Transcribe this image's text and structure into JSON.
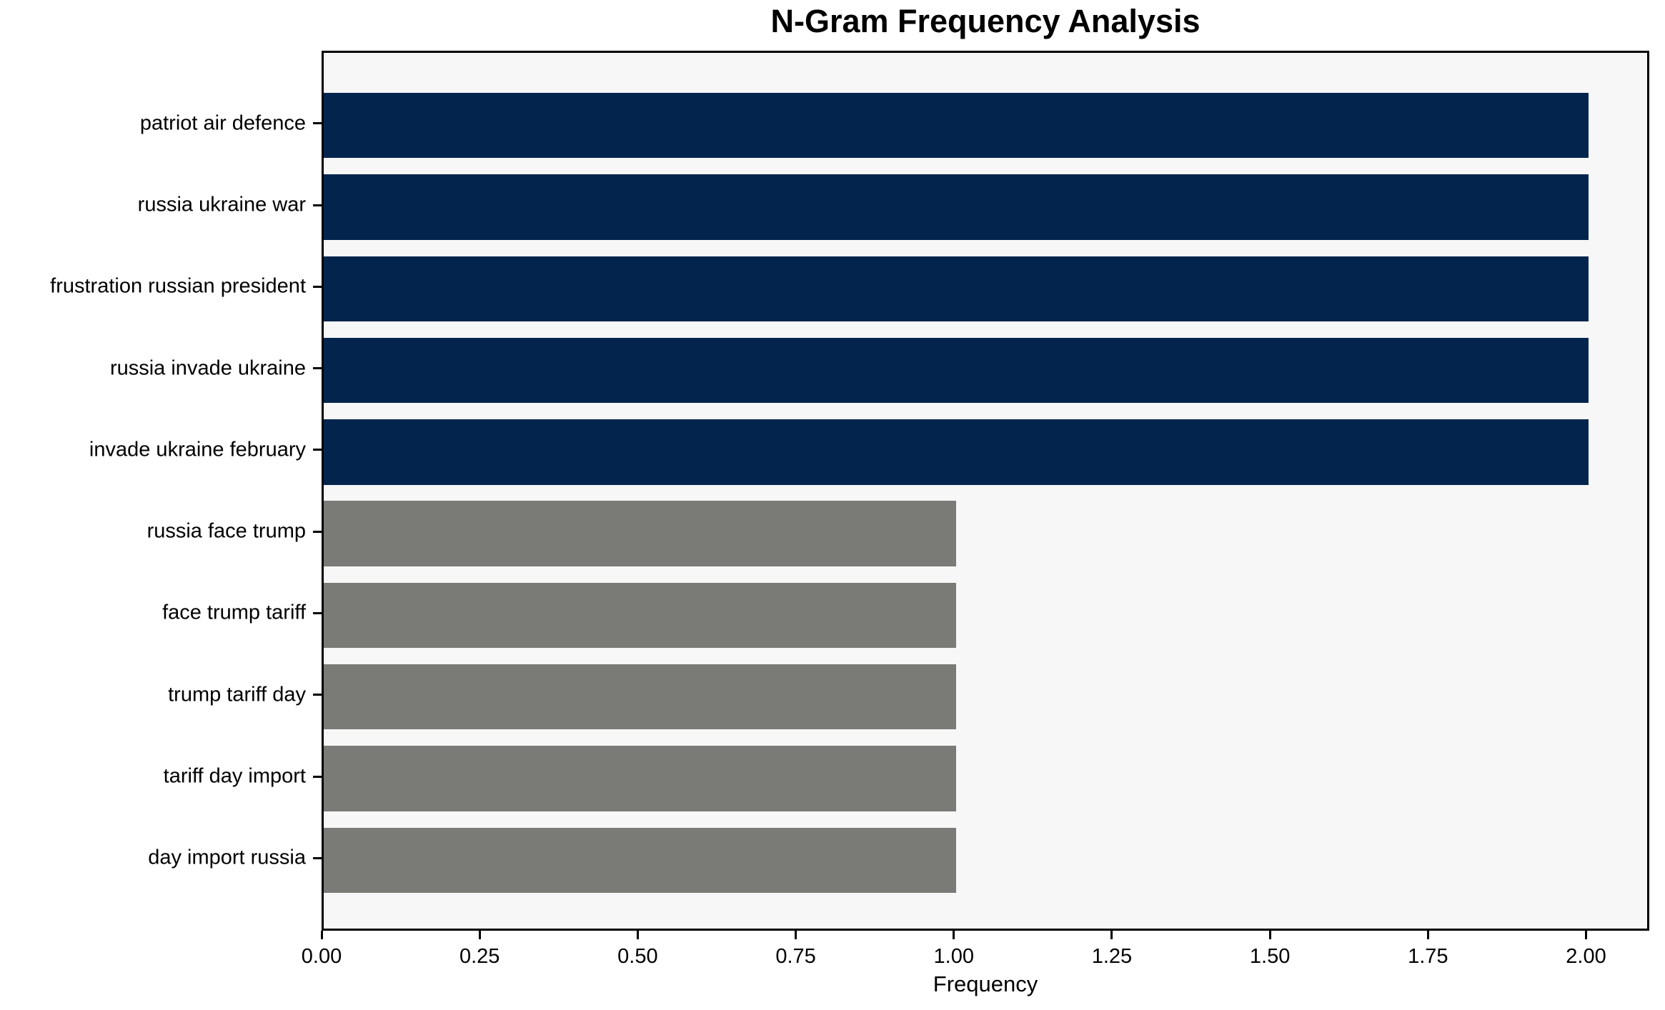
{
  "figure": {
    "background": "#ffffff",
    "plot_background": "#f7f7f7",
    "spine_color": "#000000",
    "text_color": "#000000"
  },
  "chart_data": {
    "type": "bar",
    "orientation": "horizontal",
    "title": "N-Gram Frequency Analysis",
    "xlabel": "Frequency",
    "ylabel": "",
    "grid": false,
    "legend_position": "none",
    "categories": [
      "patriot air defence",
      "russia ukraine war",
      "frustration russian president",
      "russia invade ukraine",
      "invade ukraine february",
      "russia face trump",
      "face trump tariff",
      "trump tariff day",
      "tariff day import",
      "day import russia"
    ],
    "values": [
      2,
      2,
      2,
      2,
      2,
      1,
      1,
      1,
      1,
      1
    ],
    "bar_colors": [
      "#03254d",
      "#03254d",
      "#03254d",
      "#03254d",
      "#03254d",
      "#7a7a77",
      "#7a7a77",
      "#7a7a77",
      "#7a7a77",
      "#7a7a77"
    ],
    "xlim": [
      0,
      2.1
    ],
    "ylim": [
      -0.89,
      9.89
    ],
    "bar_height_frac": 0.8,
    "xticks": [
      0.0,
      0.25,
      0.5,
      0.75,
      1.0,
      1.25,
      1.5,
      1.75,
      2.0
    ],
    "xtick_labels": [
      "0.00",
      "0.25",
      "0.50",
      "0.75",
      "1.00",
      "1.25",
      "1.50",
      "1.75",
      "2.00"
    ]
  }
}
